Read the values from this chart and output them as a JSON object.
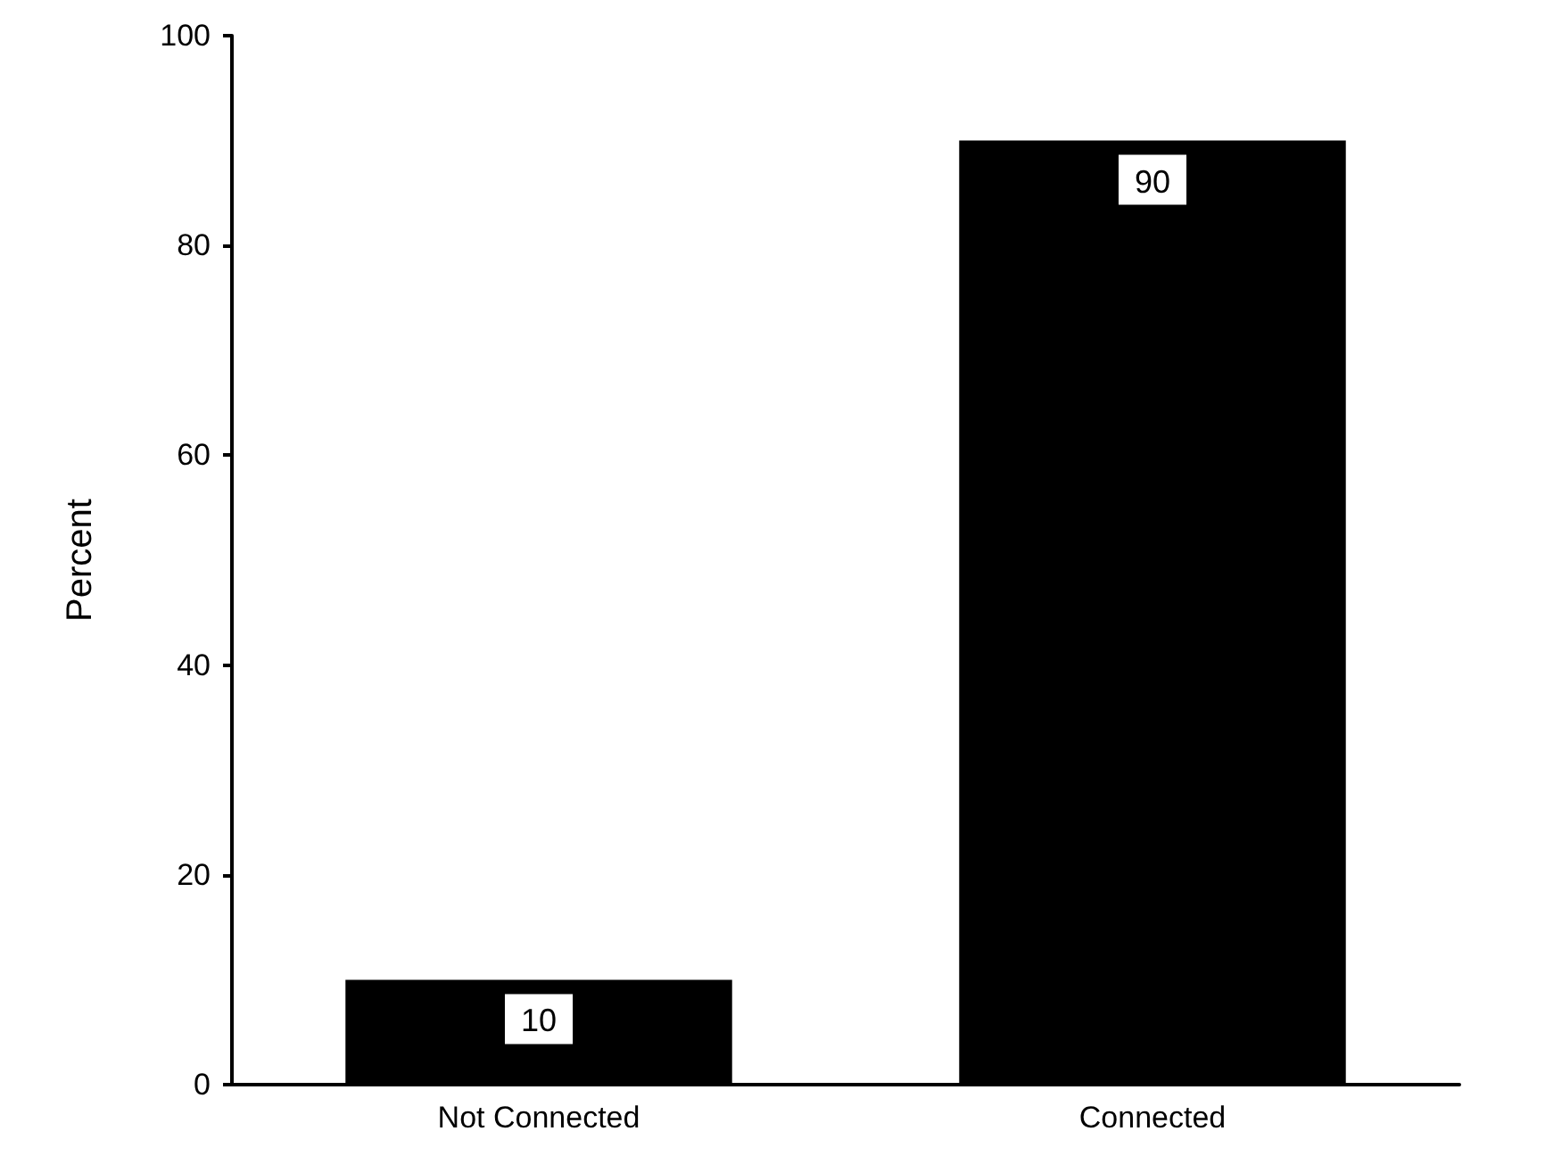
{
  "chart_data": {
    "type": "bar",
    "ylabel": "Percent",
    "categories": [
      "Not Connected",
      "Connected"
    ],
    "values": [
      10,
      90
    ],
    "color": "#000000",
    "ylim": [
      0,
      100
    ],
    "yticks": [
      0,
      20,
      40,
      60,
      80,
      100
    ],
    "data_labels": true
  }
}
